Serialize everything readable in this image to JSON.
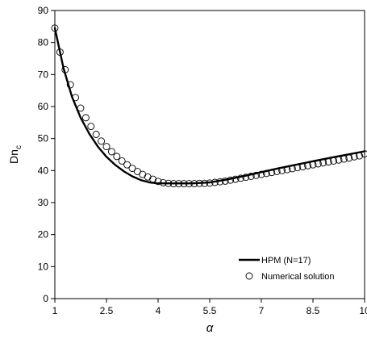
{
  "chart_data": {
    "type": "line",
    "title": "",
    "xlabel": "α",
    "ylabel": "Dn",
    "ylabel_sub": "c",
    "xlim": [
      1,
      10
    ],
    "ylim": [
      0,
      90
    ],
    "x_ticks": [
      1,
      2.5,
      4,
      5.5,
      7,
      8.5,
      10
    ],
    "x_tick_labels": [
      "1",
      "2.5",
      "4",
      "5.5",
      "7",
      "8.5",
      "10"
    ],
    "y_ticks": [
      0,
      10,
      20,
      30,
      40,
      50,
      60,
      70,
      80,
      90
    ],
    "y_tick_labels": [
      "0",
      "10",
      "20",
      "30",
      "40",
      "50",
      "60",
      "70",
      "80",
      "90"
    ],
    "grid": false,
    "legend_position": "bottom-right",
    "series": [
      {
        "name": "HPM (N=17)",
        "style": "line",
        "color": "#000000",
        "x": [
          1.0,
          1.25,
          1.5,
          1.75,
          2.0,
          2.25,
          2.5,
          2.75,
          3.0,
          3.25,
          3.5,
          3.75,
          4.0,
          4.5,
          5.0,
          5.5,
          6.0,
          6.5,
          7.0,
          7.5,
          8.0,
          8.5,
          9.0,
          9.5,
          10.0
        ],
        "y": [
          84.5,
          72.0,
          63.0,
          56.5,
          51.5,
          47.5,
          44.3,
          41.8,
          39.8,
          38.2,
          37.0,
          36.3,
          36.0,
          36.0,
          36.0,
          36.3,
          37.2,
          38.3,
          39.5,
          40.7,
          41.8,
          42.9,
          44.0,
          45.0,
          46.0
        ]
      },
      {
        "name": "Numerical solution",
        "style": "markers",
        "marker": "open-circle",
        "color": "#000000",
        "x": [
          1.0,
          1.15,
          1.3,
          1.45,
          1.6,
          1.75,
          1.9,
          2.05,
          2.2,
          2.35,
          2.5,
          2.65,
          2.8,
          2.95,
          3.1,
          3.25,
          3.4,
          3.55,
          3.7,
          3.85,
          4.0,
          4.15,
          4.3,
          4.45,
          4.6,
          4.75,
          4.9,
          5.05,
          5.2,
          5.35,
          5.5,
          5.65,
          5.8,
          5.95,
          6.1,
          6.25,
          6.4,
          6.55,
          6.7,
          6.85,
          7.0,
          7.15,
          7.3,
          7.45,
          7.6,
          7.75,
          7.9,
          8.05,
          8.2,
          8.35,
          8.5,
          8.65,
          8.8,
          8.95,
          9.1,
          9.25,
          9.4,
          9.55,
          9.7,
          9.85,
          10.0
        ],
        "y": [
          84.5,
          77.0,
          71.5,
          66.8,
          62.8,
          59.5,
          56.5,
          53.8,
          51.3,
          49.2,
          47.5,
          45.9,
          44.4,
          43.0,
          41.8,
          40.7,
          39.7,
          38.8,
          38.0,
          37.3,
          36.6,
          36.2,
          36.0,
          35.9,
          35.9,
          35.9,
          35.9,
          35.9,
          36.0,
          36.0,
          36.1,
          36.3,
          36.5,
          36.7,
          37.0,
          37.3,
          37.6,
          37.9,
          38.2,
          38.5,
          38.8,
          39.1,
          39.4,
          39.7,
          40.0,
          40.3,
          40.6,
          40.9,
          41.2,
          41.5,
          41.8,
          42.1,
          42.4,
          42.7,
          43.0,
          43.3,
          43.6,
          43.9,
          44.3,
          44.6,
          45.2
        ]
      }
    ]
  }
}
